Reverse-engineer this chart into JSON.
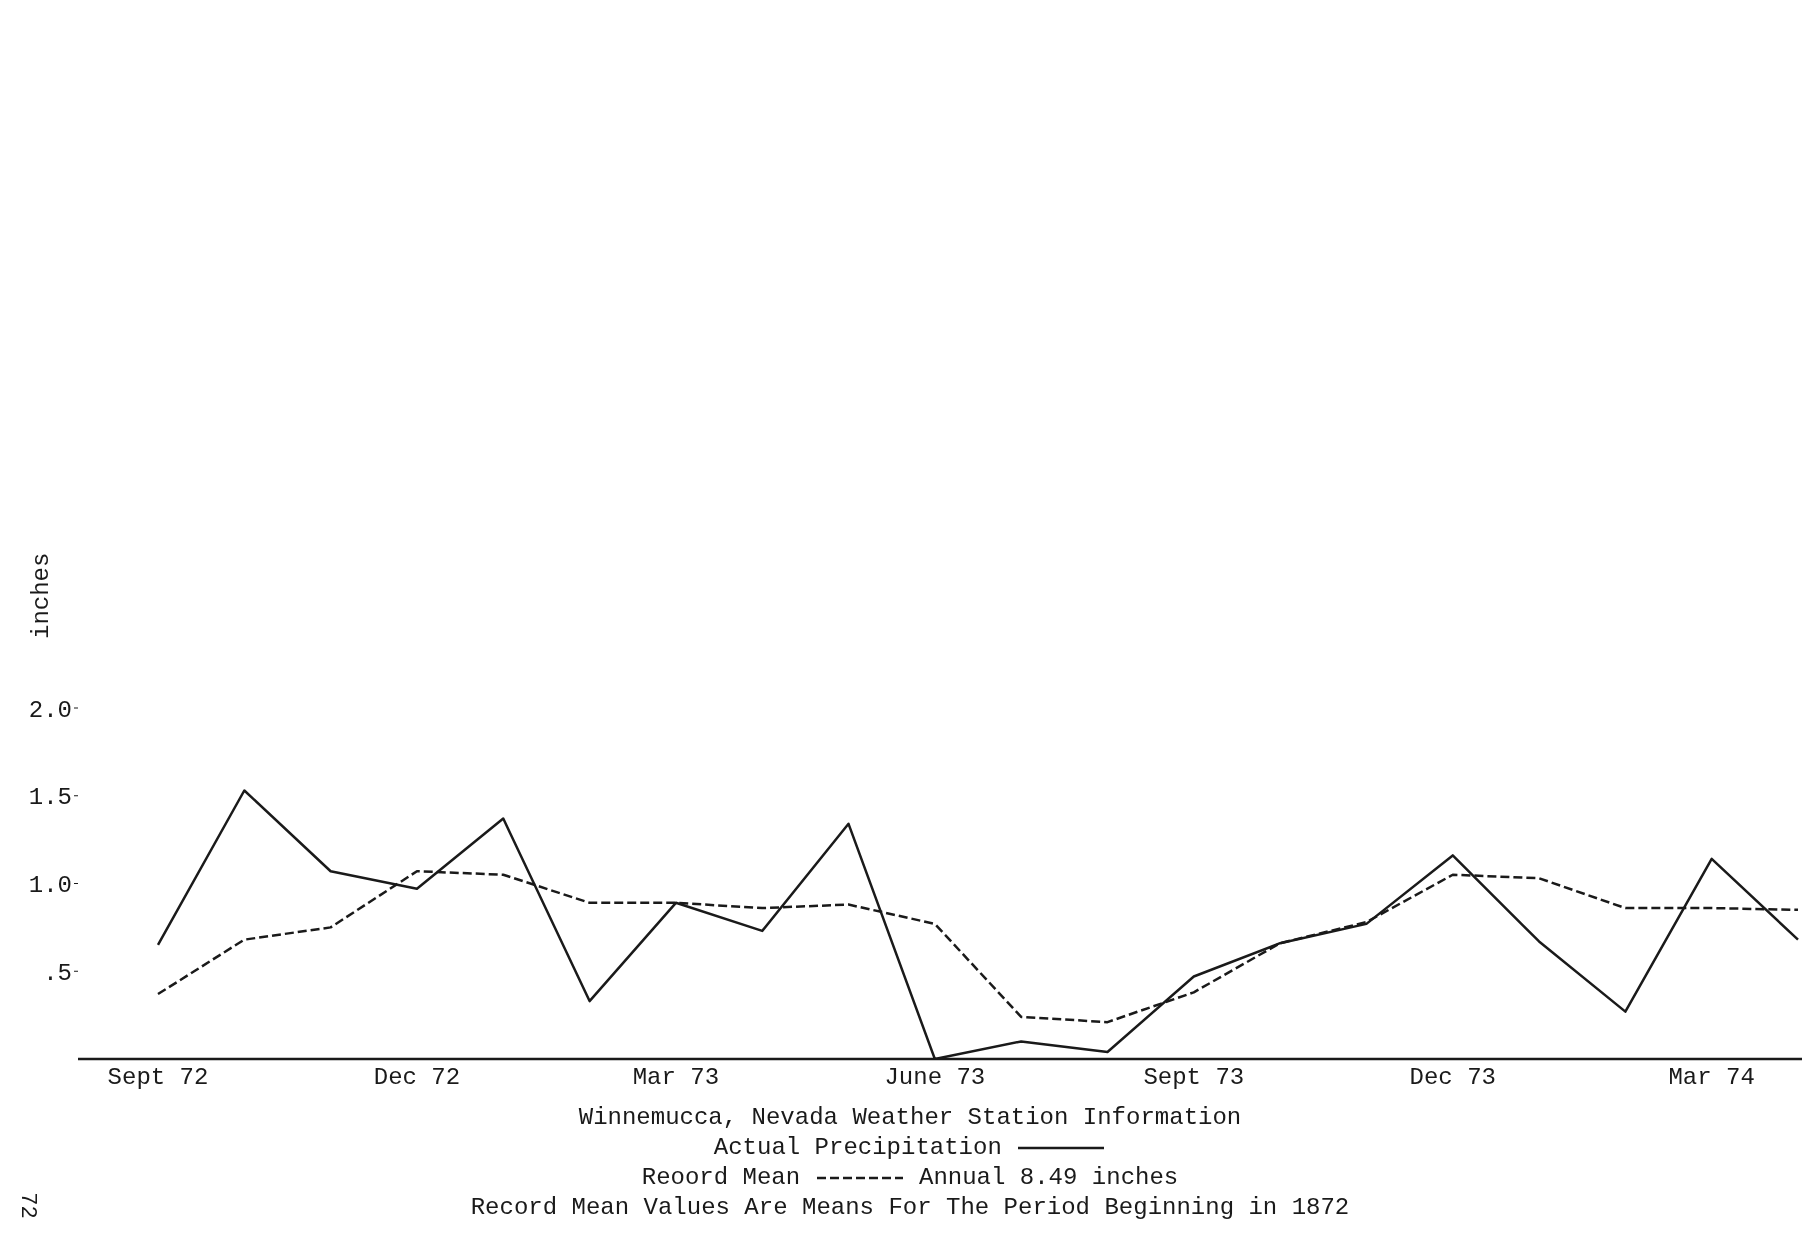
{
  "chart_data": {
    "type": "line",
    "title": "Winnemucca, Nevada  Weather Station Information",
    "ylabel": "inches",
    "categories": [
      "Sept 72",
      null,
      null,
      "Dec 72",
      null,
      null,
      "Mar 73",
      null,
      null,
      "June 73",
      null,
      null,
      "Sept 73",
      null,
      null,
      "Dec 73",
      null,
      null,
      "Mar 74",
      null
    ],
    "series": [
      {
        "name": "Actual Precipitation",
        "color": "#1a1a1a",
        "line_style": "solid",
        "values": [
          0.65,
          1.53,
          1.07,
          0.97,
          1.37,
          0.33,
          0.89,
          0.73,
          1.34,
          0.0,
          0.1,
          0.04,
          0.47,
          0.66,
          0.77,
          1.16,
          0.67,
          0.27,
          1.14,
          0.68
        ]
      },
      {
        "name": "Reoord Mean",
        "color": "#1a1a1a",
        "line_style": "dashed",
        "values": [
          0.37,
          0.68,
          0.75,
          1.07,
          1.05,
          0.89,
          0.89,
          0.86,
          0.88,
          0.77,
          0.24,
          0.21,
          0.38,
          0.66,
          0.78,
          1.05,
          1.03,
          0.86,
          0.86,
          0.85
        ]
      }
    ],
    "ylim": [
      0,
      2.0
    ],
    "yticks": [
      {
        "value": 0.5,
        "label": ".5"
      },
      {
        "value": 1.0,
        "label": "1.0"
      },
      1.5,
      {
        "value": 2.0,
        "label": "2.0"
      }
    ],
    "grid": false,
    "legend": "bottom",
    "marker": "none",
    "annotations": [
      "Annual 8.49 inches",
      "Record Mean Values Are Means For The Period Beginning in 1872",
      "72"
    ]
  }
}
